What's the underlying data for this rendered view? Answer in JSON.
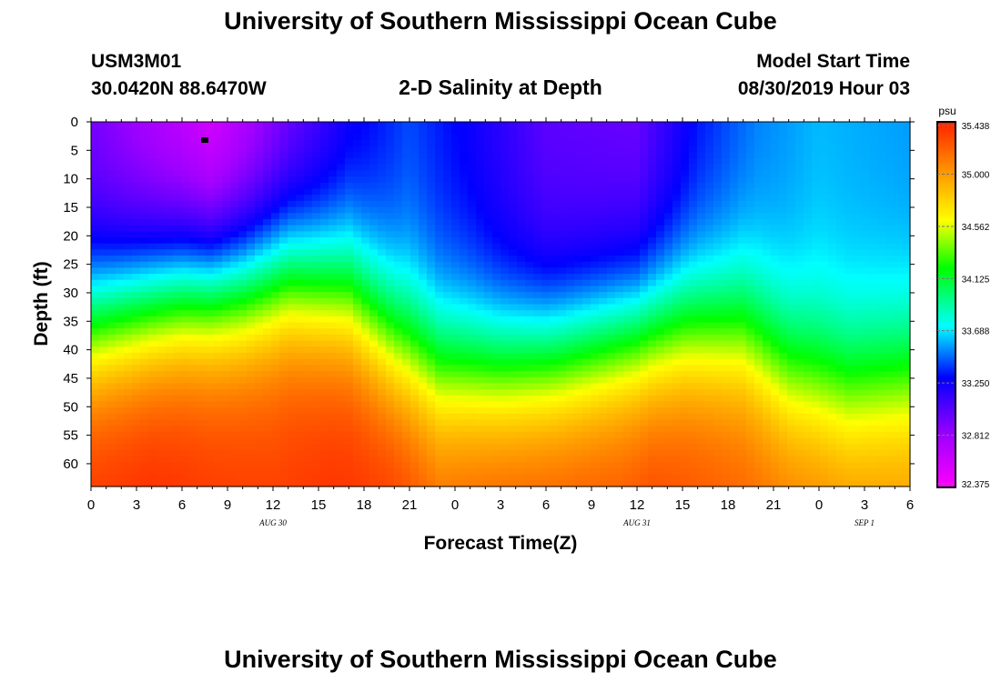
{
  "page": {
    "title_top": "University of Southern Mississippi Ocean Cube",
    "title_bottom": "University of Southern Mississippi Ocean Cube",
    "station_id": "USM3M01",
    "station_coords": "30.0420N 88.6470W",
    "model_start_label": "Model Start Time",
    "model_start_value": "08/30/2019 Hour 03"
  },
  "colors": {
    "min": "#ff00ff",
    "purple": "#a000ff",
    "blue": "#0000ff",
    "cyan": "#00ffff",
    "green": "#00ff00",
    "yellow": "#ffff00",
    "orange": "#ff9900",
    "max": "#ff2200"
  },
  "chart_data": {
    "type": "heatmap",
    "title": "2-D Salinity at Depth",
    "xlabel": "Forecast Time(Z)",
    "ylabel": "Depth (ft)",
    "x_ticks": [
      "0",
      "3",
      "6",
      "9",
      "12",
      "15",
      "18",
      "21",
      "0",
      "3",
      "6",
      "9",
      "12",
      "15",
      "18",
      "21",
      "0",
      "3",
      "6"
    ],
    "x_range_hours": [
      0,
      54
    ],
    "date_labels": [
      {
        "label": "AUG 30",
        "hour": 12
      },
      {
        "label": "AUG 31",
        "hour": 36
      },
      {
        "label": "SEP 1",
        "hour": 51
      }
    ],
    "y_ticks": [
      0,
      5,
      10,
      15,
      20,
      25,
      30,
      35,
      40,
      45,
      50,
      55,
      60
    ],
    "ylim": [
      64,
      0
    ],
    "colorbar": {
      "unit": "psu",
      "ticks": [
        "35.438",
        "35.000",
        "34.562",
        "34.125",
        "33.688",
        "33.250",
        "32.812",
        "32.375"
      ],
      "range": [
        32.375,
        35.438
      ]
    },
    "series": [
      {
        "name": "top_salinity_psu",
        "hours": [
          0,
          6,
          8,
          12,
          17,
          21,
          25,
          30,
          36,
          40,
          44,
          48,
          54
        ],
        "values": [
          32.9,
          32.6,
          32.5,
          32.8,
          33.2,
          33.4,
          33.25,
          33.0,
          32.95,
          33.3,
          33.5,
          33.6,
          33.55
        ]
      },
      {
        "name": "halocline_depth_ft",
        "hours": [
          0,
          6,
          10,
          13,
          17,
          20,
          23,
          27,
          31,
          35,
          39,
          43,
          46,
          50,
          54
        ],
        "values": [
          35,
          30,
          29,
          27,
          30,
          38,
          43,
          43,
          41,
          38,
          36,
          37,
          44,
          47,
          45
        ]
      },
      {
        "name": "bottom_salinity_psu",
        "hours": [
          0,
          4,
          8,
          12,
          16,
          20,
          23,
          27,
          31,
          35,
          37,
          41,
          45,
          50,
          54
        ],
        "values": [
          35.4,
          35.43,
          35.38,
          35.35,
          35.4,
          35.38,
          35.25,
          35.3,
          35.3,
          35.3,
          35.35,
          35.28,
          35.2,
          35.12,
          35.08
        ]
      }
    ]
  }
}
